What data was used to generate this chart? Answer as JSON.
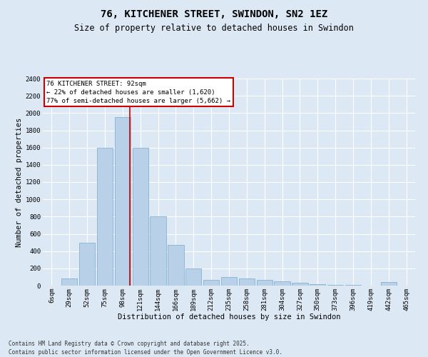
{
  "title1": "76, KITCHENER STREET, SWINDON, SN2 1EZ",
  "title2": "Size of property relative to detached houses in Swindon",
  "xlabel": "Distribution of detached houses by size in Swindon",
  "ylabel": "Number of detached properties",
  "categories": [
    "6sqm",
    "29sqm",
    "52sqm",
    "75sqm",
    "98sqm",
    "121sqm",
    "144sqm",
    "166sqm",
    "189sqm",
    "212sqm",
    "235sqm",
    "258sqm",
    "281sqm",
    "304sqm",
    "327sqm",
    "350sqm",
    "373sqm",
    "396sqm",
    "419sqm",
    "442sqm",
    "465sqm"
  ],
  "values": [
    0,
    80,
    500,
    1600,
    1950,
    1600,
    800,
    470,
    200,
    70,
    100,
    80,
    70,
    50,
    30,
    20,
    10,
    5,
    0,
    40,
    0
  ],
  "bar_color": "#b8d0e8",
  "bar_edge_color": "#7aaac8",
  "vline_x": 4.425,
  "vline_color": "#cc0000",
  "annotation_text": "76 KITCHENER STREET: 92sqm\n← 22% of detached houses are smaller (1,620)\n77% of semi-detached houses are larger (5,662) →",
  "annotation_box_color": "#ffffff",
  "annotation_box_edge": "#cc0000",
  "ylim": [
    0,
    2400
  ],
  "yticks": [
    0,
    200,
    400,
    600,
    800,
    1000,
    1200,
    1400,
    1600,
    1800,
    2000,
    2200,
    2400
  ],
  "background_color": "#dce9f5",
  "footer1": "Contains HM Land Registry data © Crown copyright and database right 2025.",
  "footer2": "Contains public sector information licensed under the Open Government Licence v3.0.",
  "title1_fontsize": 10,
  "title2_fontsize": 8.5,
  "annotation_fontsize": 6.5,
  "tick_fontsize": 6.5,
  "xlabel_fontsize": 7.5,
  "ylabel_fontsize": 7.5,
  "footer_fontsize": 5.5
}
